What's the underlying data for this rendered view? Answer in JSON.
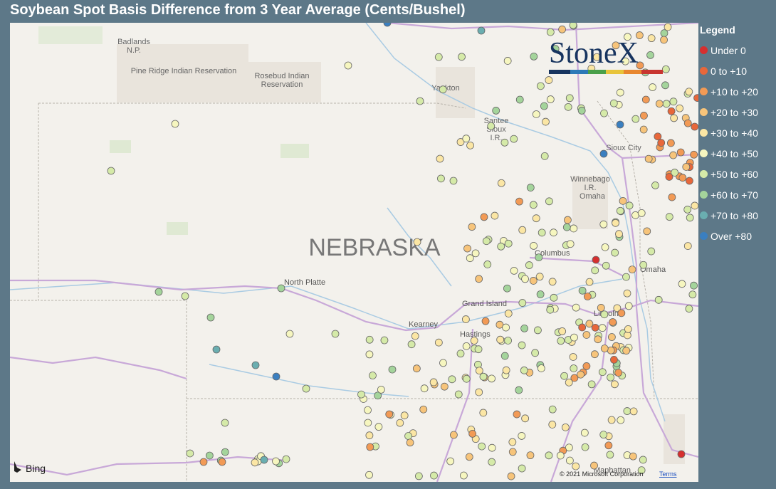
{
  "title": "Soybean Spot Basis Difference from 3 Year Average (Cents/Bushel)",
  "legend": {
    "title": "Legend",
    "items": [
      {
        "label": "Under 0",
        "color": "#d62f2f"
      },
      {
        "label": "0 to +10",
        "color": "#e8673a"
      },
      {
        "label": "+10 to +20",
        "color": "#f29a55"
      },
      {
        "label": "+20 to +30",
        "color": "#f7c47a"
      },
      {
        "label": "+30 to +40",
        "color": "#fbe6a4"
      },
      {
        "label": "+40 to +50",
        "color": "#f6f6bf"
      },
      {
        "label": "+50 to +60",
        "color": "#d5eaa8"
      },
      {
        "label": "+60 to +70",
        "color": "#a4d49b"
      },
      {
        "label": "+70 to +80",
        "color": "#6aaeb0"
      },
      {
        "label": "Over +80",
        "color": "#3a7fc0"
      }
    ]
  },
  "logo": "StoneX",
  "map_labels": {
    "badlands": [
      "Badlands",
      "N.P."
    ],
    "pine_ridge": "Pine Ridge Indian Reservation",
    "rosebud": [
      "Rosebud Indian",
      "Reservation"
    ],
    "yankton": "Yankton",
    "santee": [
      "Santee",
      "Sioux",
      "I.R."
    ],
    "sioux_city": "Sioux City",
    "winnebago": [
      "Winnebago",
      "I.R."
    ],
    "omaha_ir": "Omaha",
    "state": "NEBRASKA",
    "columbus": "Columbus",
    "north_platte": "North Platte",
    "grand_island": "Grand Island",
    "kearney": "Kearney",
    "hastings": "Hastings",
    "omaha": "Omaha",
    "lincoln": "Lincoln",
    "manhattan": "Manhattan"
  },
  "attribution": {
    "bing": "Bing",
    "copyright": "© 2021 Microsoft Corporation",
    "terms": "Terms"
  }
}
